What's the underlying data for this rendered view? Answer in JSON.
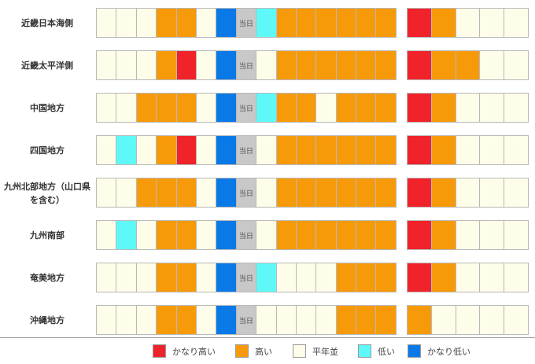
{
  "today_label": "当日",
  "regions": [
    {
      "name": "近畿日本海側",
      "cells": [
        "n",
        "n",
        "n",
        "h",
        "h",
        "n",
        "vl",
        "today",
        "l",
        "h",
        "h",
        "h",
        "h",
        "h",
        "h"
      ],
      "extra": [
        "vh",
        "h",
        "n",
        "n",
        "n"
      ]
    },
    {
      "name": "近畿太平洋側",
      "cells": [
        "n",
        "n",
        "n",
        "h",
        "vh",
        "n",
        "vl",
        "today",
        "n",
        "h",
        "h",
        "h",
        "h",
        "h",
        "h"
      ],
      "extra": [
        "vh",
        "h",
        "h",
        "n",
        "n"
      ]
    },
    {
      "name": "中国地方",
      "cells": [
        "n",
        "n",
        "h",
        "h",
        "h",
        "n",
        "vl",
        "today",
        "l",
        "h",
        "h",
        "n",
        "h",
        "h",
        "h"
      ],
      "extra": [
        "vh",
        "h",
        "n",
        "n",
        "n"
      ]
    },
    {
      "name": "四国地方",
      "cells": [
        "n",
        "l",
        "n",
        "h",
        "vh",
        "n",
        "vl",
        "today",
        "n",
        "h",
        "h",
        "h",
        "h",
        "h",
        "h"
      ],
      "extra": [
        "vh",
        "h",
        "n",
        "n",
        "n"
      ]
    },
    {
      "name": "九州北部地方（山口県を含む）",
      "cells": [
        "n",
        "n",
        "h",
        "h",
        "h",
        "n",
        "vl",
        "today",
        "n",
        "h",
        "h",
        "h",
        "h",
        "h",
        "h"
      ],
      "extra": [
        "vh",
        "h",
        "n",
        "n",
        "n"
      ]
    },
    {
      "name": "九州南部",
      "cells": [
        "n",
        "l",
        "n",
        "h",
        "h",
        "n",
        "vl",
        "today",
        "n",
        "h",
        "h",
        "h",
        "h",
        "h",
        "h"
      ],
      "extra": [
        "vh",
        "h",
        "n",
        "n",
        "n"
      ]
    },
    {
      "name": "奄美地方",
      "cells": [
        "n",
        "n",
        "n",
        "h",
        "h",
        "n",
        "vl",
        "today",
        "l",
        "n",
        "n",
        "n",
        "h",
        "h",
        "h"
      ],
      "extra": [
        "vh",
        "h",
        "n",
        "n",
        "n"
      ]
    },
    {
      "name": "沖縄地方",
      "cells": [
        "n",
        "n",
        "n",
        "h",
        "h",
        "n",
        "vl",
        "today",
        "n",
        "n",
        "n",
        "n",
        "h",
        "h",
        "h"
      ],
      "extra": [
        "h",
        "n",
        "n",
        "n",
        "n"
      ]
    }
  ],
  "legend": [
    {
      "code": "vh",
      "label": "かなり高い",
      "color": "#f0222a"
    },
    {
      "code": "h",
      "label": "高い",
      "color": "#f79a0a"
    },
    {
      "code": "n",
      "label": "平年並",
      "color": "#fdfde9"
    },
    {
      "code": "l",
      "label": "低い",
      "color": "#5ff8f8"
    },
    {
      "code": "vl",
      "label": "かなり低い",
      "color": "#0a79e8"
    }
  ]
}
